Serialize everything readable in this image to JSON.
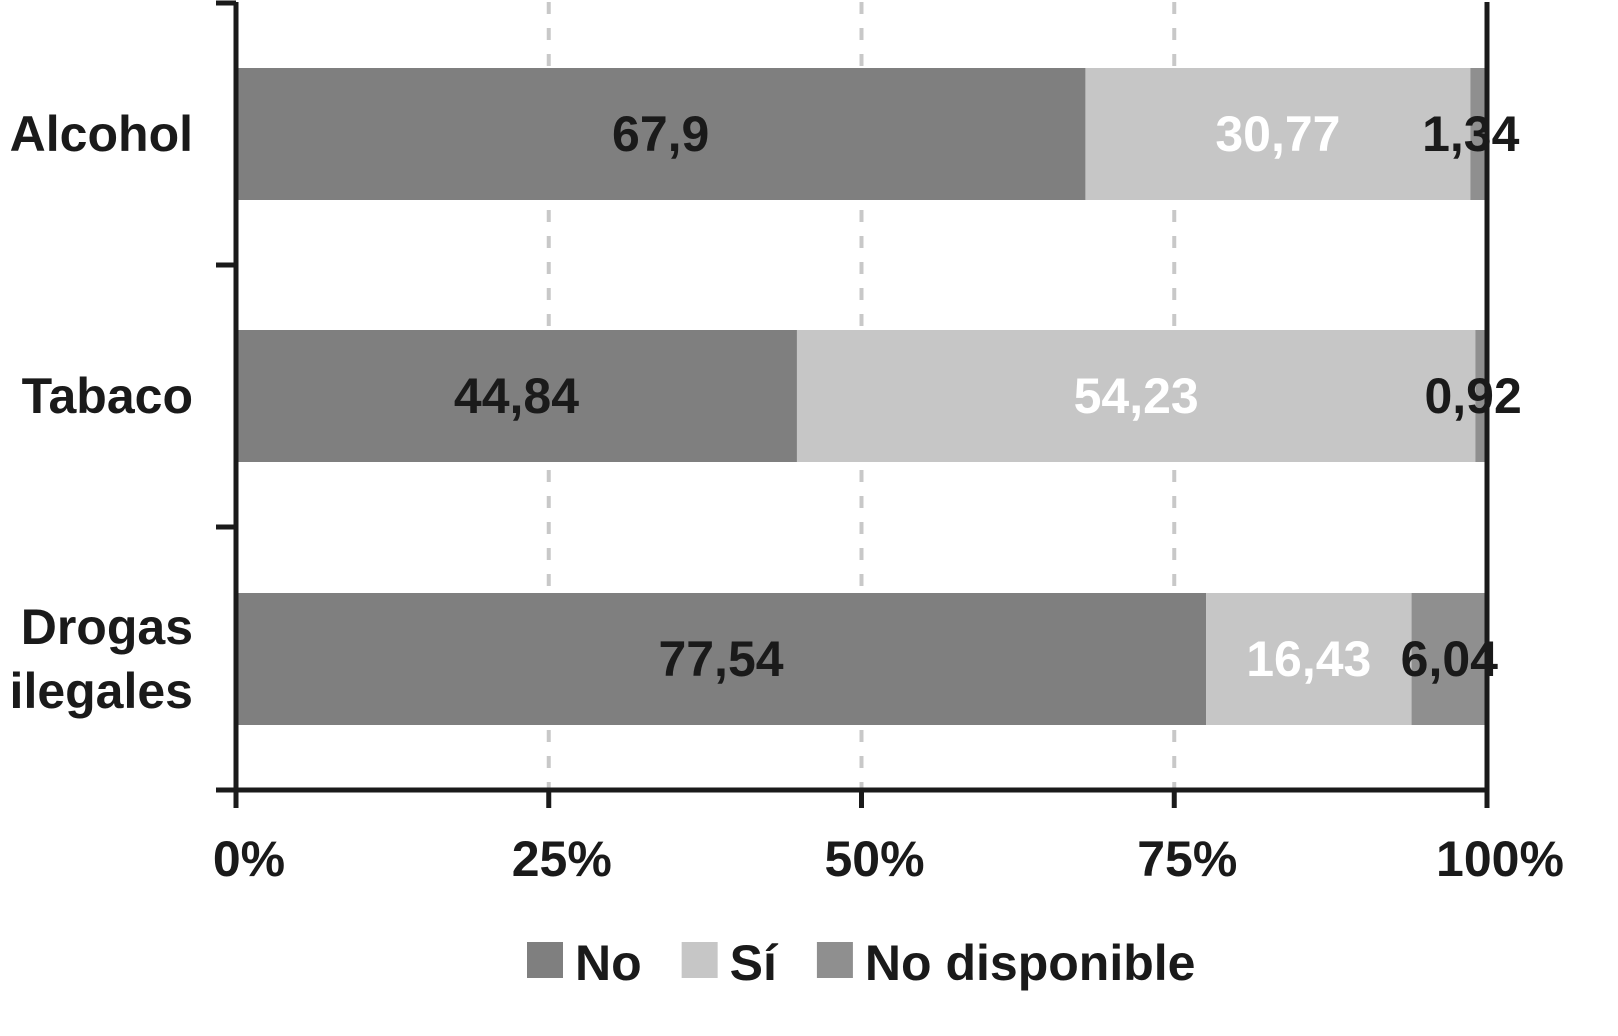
{
  "chart_data": {
    "type": "bar",
    "orientation": "horizontal",
    "stacked": true,
    "normalized_percent": true,
    "categories": [
      "Alcohol",
      "Tabaco",
      "Drogas ilegales"
    ],
    "category_labels": [
      [
        "Alcohol"
      ],
      [
        "Tabaco"
      ],
      [
        "Drogas",
        "ilegales"
      ]
    ],
    "series": [
      {
        "name": "No",
        "values": [
          67.9,
          44.84,
          77.54
        ],
        "labels": [
          "67,9",
          "44,84",
          "77,54"
        ],
        "color": "#7f7f7f",
        "label_color": "#1a1a1a"
      },
      {
        "name": "Sí",
        "values": [
          30.77,
          54.23,
          16.43
        ],
        "labels": [
          "30,77",
          "54,23",
          "16,43"
        ],
        "color": "#c6c6c6",
        "label_color": "#ffffff"
      },
      {
        "name": "No disponible",
        "values": [
          1.34,
          0.92,
          6.04
        ],
        "labels": [
          "1,34",
          "0,92",
          "6,04"
        ],
        "color": "#8f8f8f",
        "label_color": "#1a1a1a"
      }
    ],
    "x_ticks": [
      0,
      25,
      50,
      75,
      100
    ],
    "x_tick_labels": [
      "0%",
      "25%",
      "50%",
      "75%",
      "100%"
    ],
    "xlim": [
      0,
      100
    ],
    "title": "",
    "xlabel": "",
    "ylabel": "",
    "grid": "vertical dashed",
    "legend_position": "bottom"
  }
}
